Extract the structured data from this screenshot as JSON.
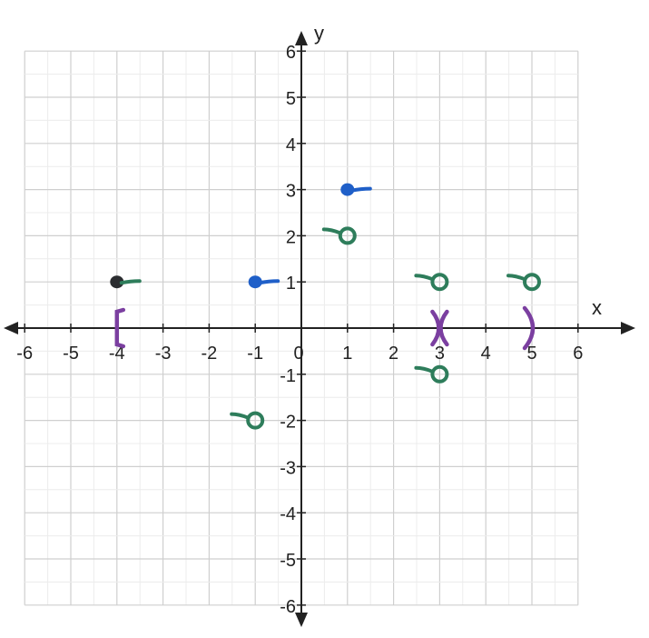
{
  "chart_data": {
    "type": "scatter",
    "xlabel": "x",
    "ylabel": "y",
    "xlim": [
      -6,
      6
    ],
    "ylim": [
      -6,
      6
    ],
    "grid": true,
    "grid_minor_step": 0.5,
    "x_ticks": [
      "-6",
      "-5",
      "-4",
      "-3",
      "-2",
      "-1",
      "0",
      "1",
      "2",
      "3",
      "4",
      "5",
      "6"
    ],
    "y_ticks": [
      "6",
      "5",
      "4",
      "3",
      "2",
      "1",
      "-1",
      "-2",
      "-3",
      "-4",
      "-5",
      "-6"
    ],
    "series": [
      {
        "color": "#1f5fc8",
        "marker": "filled-dot",
        "points": [
          [
            -1,
            1
          ],
          [
            1,
            3
          ]
        ]
      },
      {
        "color": "#2b2d30",
        "marker": "filled-dot",
        "points": [
          [
            -4,
            1
          ]
        ]
      },
      {
        "color": "#2e7d5b",
        "marker": "open-circle",
        "points": [
          [
            -1,
            -2
          ],
          [
            1,
            2
          ],
          [
            3,
            1
          ],
          [
            3,
            -1
          ],
          [
            5,
            1
          ]
        ]
      },
      {
        "color": "#7b3fa0",
        "marker": "interval-symbol",
        "points": [
          [
            -4,
            0
          ],
          [
            3,
            0
          ],
          [
            5,
            0
          ]
        ],
        "symbols": [
          "[",
          ")(",
          ")"
        ]
      }
    ],
    "colors": {
      "axis": "#222222",
      "grid_major": "#cfcfcf",
      "grid_minor": "#ececec"
    }
  }
}
